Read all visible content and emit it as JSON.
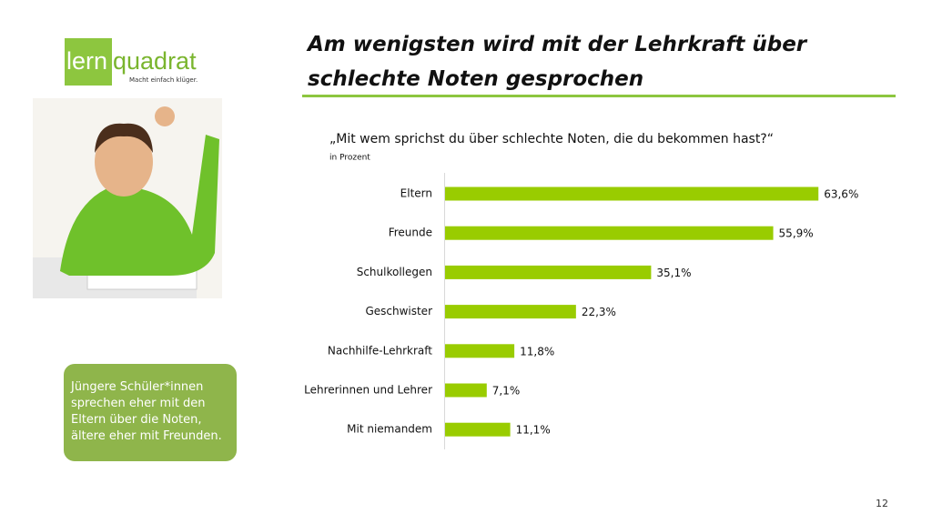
{
  "header": {
    "title_lines": [
      "Am wenigsten wird mit der Lehrkraft über",
      "schlechte Noten gesprochen"
    ]
  },
  "logo": {
    "part1": "lern",
    "part2": "quadrat",
    "slogan": "Macht einfach klüger."
  },
  "callout": {
    "lines": [
      "Jüngere Schüler*innen",
      "sprechen eher mit den",
      "Eltern über die Noten,",
      "ältere eher mit Freunden."
    ]
  },
  "page_number": "12",
  "chart_data": {
    "type": "bar",
    "orientation": "horizontal",
    "title": "„Mit wem sprichst du über schlechte Noten, die du bekommen hast?“",
    "subtitle": "in Prozent",
    "categories": [
      "Eltern",
      "Freunde",
      "Schulkollegen",
      "Geschwister",
      "Nachhilfe-Lehrkraft",
      "Lehrerinnen und Lehrer",
      "Mit niemandem"
    ],
    "values": [
      63.6,
      55.9,
      35.1,
      22.3,
      11.8,
      7.1,
      11.1
    ],
    "value_labels": [
      "63,6%",
      "55,9%",
      "35,1%",
      "22,3%",
      "11,8%",
      "7,1%",
      "11,1%"
    ],
    "color": "#99cc00"
  }
}
